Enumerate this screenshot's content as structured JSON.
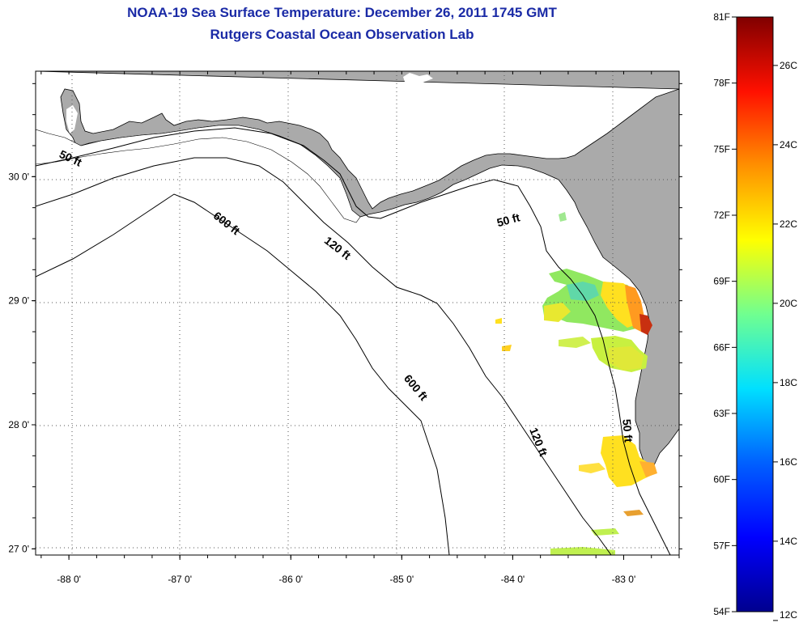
{
  "title_line1": "NOAA-19 Sea Surface Temperature:  December 26, 2011 1745 GMT",
  "title_line2": "Rutgers Coastal Ocean Observation Lab",
  "map": {
    "lon_range": [
      -88.3,
      -82.5
    ],
    "lat_range": [
      26.95,
      30.85
    ],
    "lon_ticks": [
      -88,
      -87,
      -86,
      -85,
      -84,
      -83
    ],
    "lon_tick_labels": [
      "-88 0'",
      "-87 0'",
      "-86 0'",
      "-85 0'",
      "-84 0'",
      "-83 0'"
    ],
    "lat_ticks": [
      27,
      28,
      29,
      30
    ],
    "lat_tick_labels": [
      "27 0'",
      "28 0'",
      "29 0'",
      "30 0'"
    ],
    "land_color": "#aaaaaa",
    "water_color": "#ffffff",
    "contour_labels": [
      {
        "text": "50 ft",
        "lon": -88.0,
        "lat": 30.12,
        "rot": 25
      },
      {
        "text": "600 ft",
        "lon": -86.6,
        "lat": 29.6,
        "rot": 38
      },
      {
        "text": "120 ft",
        "lon": -85.6,
        "lat": 29.4,
        "rot": 38
      },
      {
        "text": "50 ft",
        "lon": -84.03,
        "lat": 29.62,
        "rot": -15
      },
      {
        "text": "600 ft",
        "lon": -84.9,
        "lat": 28.28,
        "rot": 50
      },
      {
        "text": "120 ft",
        "lon": -83.8,
        "lat": 27.85,
        "rot": 68
      },
      {
        "text": "50 ft",
        "lon": -83.0,
        "lat": 27.95,
        "rot": 85
      }
    ]
  },
  "colorbar": {
    "f_labels": [
      "81F",
      "78F",
      "75F",
      "72F",
      "69F",
      "66F",
      "63F",
      "60F",
      "57F",
      "54F"
    ],
    "c_labels": [
      "26C",
      "24C",
      "22C",
      "20C",
      "18C",
      "16C",
      "14C",
      "12C"
    ],
    "colors": [
      "#00008f",
      "#0000ff",
      "#0080ff",
      "#00ffff",
      "#80ff80",
      "#ffff00",
      "#ff8000",
      "#ff0000",
      "#800000"
    ]
  }
}
